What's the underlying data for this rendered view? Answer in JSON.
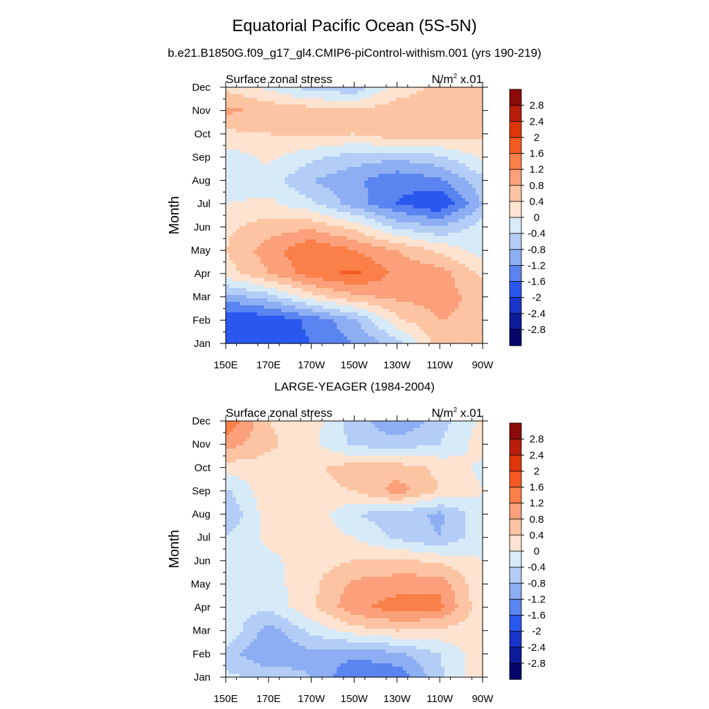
{
  "figure": {
    "title": "Equatorial Pacific Ocean (5S-5N)",
    "subtitle_top": "b.e21.B1850G.f09_g17_gl4.CMIP6-piControl-withism.001 (yrs 190-219)",
    "subtitle_bottom": "LARGE-YEAGER (1984-2004)"
  },
  "chart_data": [
    {
      "type": "heatmap",
      "panel": "model",
      "left_label": "Surface zonal stress",
      "units_label": "N/m",
      "units_sup": "2",
      "units_suffix": " x.01",
      "ylabel": "Month",
      "xticks": [
        "150E",
        "170E",
        "170W",
        "150W",
        "130W",
        "110W",
        "90W"
      ],
      "yticks": [
        "Jan",
        "Feb",
        "Mar",
        "Apr",
        "May",
        "Jun",
        "Jul",
        "Aug",
        "Sep",
        "Oct",
        "Nov",
        "Dec"
      ],
      "x_lon_east": [
        150,
        170,
        190,
        210,
        230,
        250,
        270
      ],
      "rows": [
        [
          -1.8,
          -1.9,
          -1.6,
          -1.2,
          -0.6,
          0.6,
          0.6
        ],
        [
          -2.0,
          -1.9,
          -1.5,
          -0.9,
          0.3,
          0.8,
          0.7
        ],
        [
          -1.0,
          -0.6,
          0.2,
          0.7,
          0.9,
          1.0,
          0.6
        ],
        [
          0.2,
          0.8,
          1.4,
          1.7,
          1.1,
          1.0,
          0.3
        ],
        [
          0.4,
          1.0,
          1.6,
          1.2,
          0.8,
          0.3,
          -0.2
        ],
        [
          0.3,
          0.6,
          0.7,
          0.3,
          -0.5,
          -0.8,
          -0.2
        ],
        [
          0.0,
          0.1,
          -0.3,
          -1.0,
          -1.6,
          -2.0,
          -0.8
        ],
        [
          -0.3,
          -0.2,
          -0.8,
          -1.1,
          -1.5,
          -1.3,
          -0.5
        ],
        [
          -0.2,
          0.1,
          -0.3,
          -0.6,
          -0.7,
          -0.5,
          0.1
        ],
        [
          0.3,
          0.4,
          0.5,
          0.4,
          0.7,
          0.7,
          0.5
        ],
        [
          0.9,
          0.7,
          0.6,
          0.5,
          0.6,
          0.6,
          0.6
        ],
        [
          0.3,
          -0.1,
          -0.6,
          -0.7,
          0.2,
          0.5,
          0.6
        ]
      ]
    },
    {
      "type": "heatmap",
      "panel": "observations",
      "left_label": "Surface zonal stress",
      "units_label": "N/m",
      "units_sup": "2",
      "units_suffix": " x.01",
      "ylabel": "Month",
      "xticks": [
        "150E",
        "170E",
        "170W",
        "150W",
        "130W",
        "110W",
        "90W"
      ],
      "yticks": [
        "Jan",
        "Feb",
        "Mar",
        "Apr",
        "May",
        "Jun",
        "Jul",
        "Aug",
        "Sep",
        "Oct",
        "Nov",
        "Dec"
      ],
      "x_lon_east": [
        150,
        170,
        190,
        210,
        230,
        250,
        270
      ],
      "rows": [
        [
          -0.3,
          -0.5,
          -0.8,
          -1.6,
          -1.5,
          -0.5,
          0.3
        ],
        [
          -0.6,
          -1.2,
          -0.9,
          -1.1,
          -0.9,
          -0.4,
          0.3
        ],
        [
          0.0,
          -1.0,
          -0.3,
          0.2,
          0.4,
          0.3,
          0.2
        ],
        [
          -0.3,
          -0.3,
          0.3,
          1.1,
          1.4,
          1.3,
          0.1
        ],
        [
          -0.4,
          -0.2,
          0.3,
          0.9,
          1.0,
          1.1,
          0.0
        ],
        [
          -0.3,
          -0.1,
          0.2,
          0.4,
          0.5,
          0.3,
          0.0
        ],
        [
          -0.4,
          0.1,
          0.2,
          0.0,
          -0.5,
          -0.8,
          -0.1
        ],
        [
          -0.8,
          0.2,
          0.3,
          -0.4,
          -0.6,
          -0.9,
          -0.1
        ],
        [
          -0.5,
          0.3,
          0.3,
          0.4,
          1.0,
          0.4,
          0.0
        ],
        [
          0.2,
          0.2,
          0.3,
          0.6,
          0.6,
          0.3,
          -0.1
        ],
        [
          1.0,
          0.5,
          0.1,
          -0.5,
          -0.6,
          -0.4,
          0.2
        ],
        [
          1.6,
          0.4,
          0.2,
          -0.6,
          -1.2,
          -0.6,
          0.1
        ]
      ]
    }
  ],
  "colorbar": {
    "levels": [
      "2.8",
      "2.4",
      "2",
      "1.6",
      "1.2",
      "0.8",
      "0.4",
      "0",
      "-0.4",
      "-0.8",
      "-1.2",
      "-1.6",
      "-2",
      "-2.4",
      "-2.8"
    ],
    "colors": [
      "#8c0a0a",
      "#b81e0a",
      "#de360b",
      "#f55a22",
      "#fa7f48",
      "#fba07a",
      "#fcc4a3",
      "#fde3d0",
      "#d7eaf8",
      "#b3cdf6",
      "#8daef2",
      "#5a84f0",
      "#2a58ee",
      "#1a33c8",
      "#0c1b99",
      "#05066a"
    ]
  }
}
